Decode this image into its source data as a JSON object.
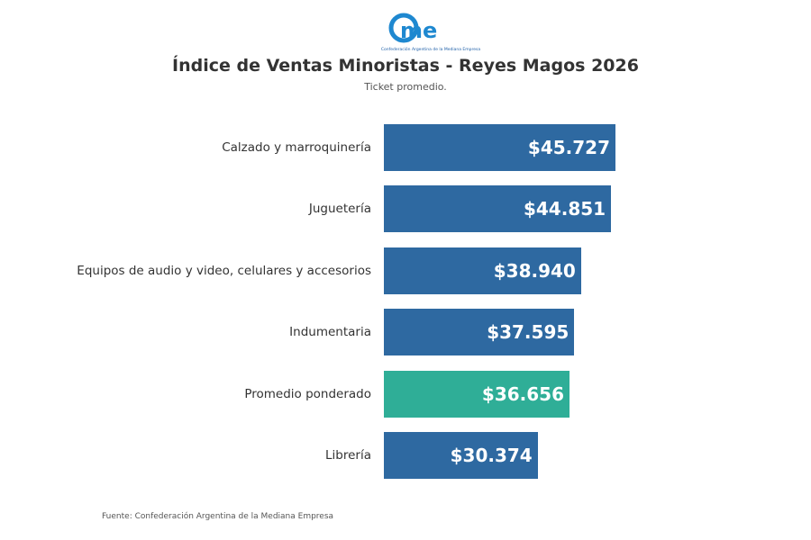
{
  "logo": {
    "text": "cme",
    "tagline": "Confederación Argentina de la Mediana Empresa"
  },
  "chart_data": {
    "type": "bar",
    "orientation": "horizontal",
    "title": "Índice de Ventas Minoristas - Reyes Magos 2026",
    "subtitle": "Ticket promedio.",
    "categories": [
      "Calzado y marroquinería",
      "Juguetería",
      "Equipos de audio y video, celulares y accesorios",
      "Indumentaria",
      "Promedio ponderado",
      "Librería"
    ],
    "values": [
      45727,
      44851,
      38940,
      37595,
      36656,
      30374
    ],
    "labels": [
      "$45.727",
      "$44.851",
      "$38.940",
      "$37.595",
      "$36.656",
      "$30.374"
    ],
    "colors": [
      "#2e69a1",
      "#2e69a1",
      "#2e69a1",
      "#2e69a1",
      "#2fae97",
      "#2e69a1"
    ],
    "xlim": [
      0,
      45727
    ],
    "grid": false,
    "source": "Fuente: Confederación Argentina de la Mediana Empresa"
  }
}
